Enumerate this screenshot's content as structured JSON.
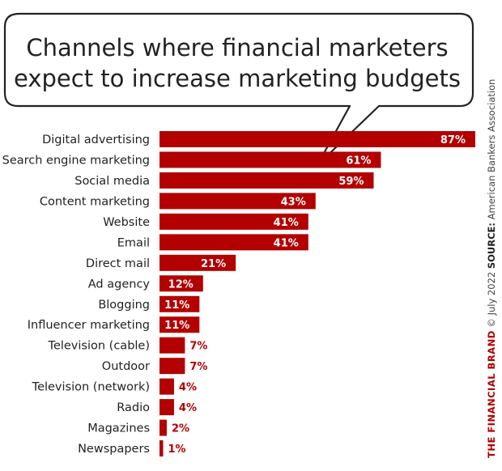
{
  "title": {
    "line1": "Channels where financial marketers",
    "line2": "expect to increase marketing budgets"
  },
  "credit": {
    "brand": "THE FINANCIAL BRAND",
    "date": " © July 2022 ",
    "source_label": "SOURCE:",
    "source": " American Bankers Association"
  },
  "colors": {
    "bar": "#b30000",
    "inside_label": "#ffffff",
    "outside_label": "#b30000",
    "bubble_stroke": "#222222"
  },
  "chart_data": {
    "type": "bar",
    "orientation": "horizontal",
    "title": "Channels where financial marketers expect to increase marketing budgets",
    "categories": [
      "Digital advertising",
      "Search engine marketing",
      "Social media",
      "Content marketing",
      "Website",
      "Email",
      "Direct mail",
      "Ad agency",
      "Blogging",
      "Influencer marketing",
      "Television (cable)",
      "Outdoor",
      "Television (network)",
      "Radio",
      "Magazines",
      "Newspapers"
    ],
    "values": [
      87,
      61,
      59,
      43,
      41,
      41,
      21,
      12,
      11,
      11,
      7,
      7,
      4,
      4,
      2,
      1
    ],
    "value_labels": [
      "87%",
      "61%",
      "59%",
      "43%",
      "41%",
      "41%",
      "21%",
      "12%",
      "11%",
      "11%",
      "7%",
      "7%",
      "4%",
      "4%",
      "2%",
      "1%"
    ],
    "unit": "%",
    "xlim": [
      0,
      100
    ],
    "grid": false,
    "legend": "none"
  }
}
